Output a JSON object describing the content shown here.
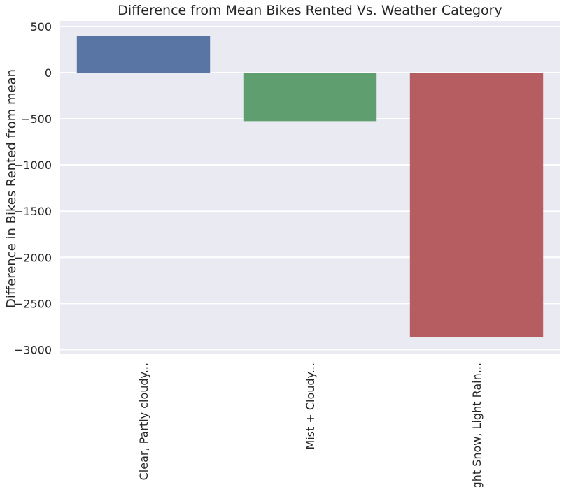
{
  "chart_data": {
    "type": "bar",
    "title": "Difference from Mean Bikes Rented Vs. Weather Category",
    "xlabel": "",
    "ylabel": "Difference in Bikes Rented from mean",
    "categories": [
      "Clear, Partly cloudy...",
      "Mist + Cloudy...",
      "Light Snow, Light Rain..."
    ],
    "values": [
      400,
      -525,
      -2865
    ],
    "ylim": [
      -3050,
      560
    ],
    "yticks": [
      500,
      0,
      -500,
      -1000,
      -1500,
      -2000,
      -2500,
      -3000
    ],
    "ytick_labels": [
      "500",
      "0",
      "−500",
      "−1000",
      "−1500",
      "−2000",
      "−2500",
      "−3000"
    ],
    "grid": true,
    "colors": [
      "#5975a4",
      "#5f9e6e",
      "#b55d60"
    ],
    "background": "#eaeaf2"
  }
}
